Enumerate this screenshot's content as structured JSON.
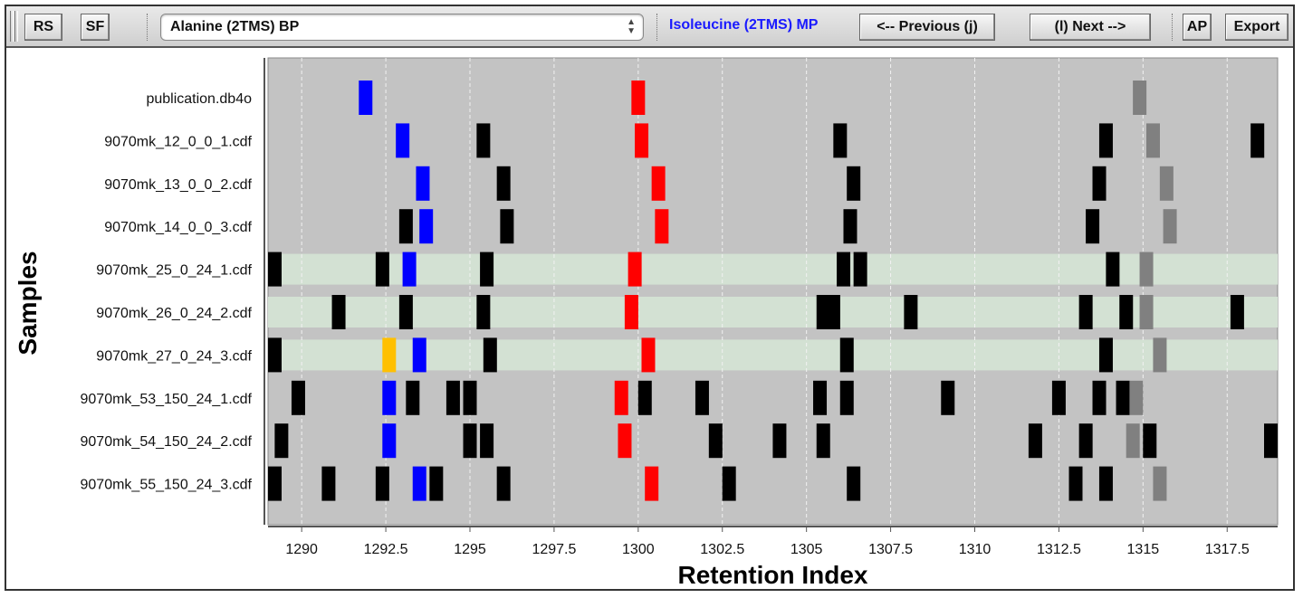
{
  "toolbar": {
    "rs_label": "RS",
    "sf_label": "SF",
    "selected_compound": "Alanine (2TMS) BP",
    "marker_label": "Isoleucine (2TMS) MP",
    "marker_color": "#1a1aff",
    "previous_label": "<-- Previous (j)",
    "next_label": "(l) Next -->",
    "ap_label": "AP",
    "export_label": "Export"
  },
  "colors": {
    "plot_background": "#c3c3c3",
    "highlight_row": "#d3e1d3",
    "peak_default": "#000000",
    "peak_selected": "#0000ff",
    "peak_marker": "#ff0000",
    "peak_gray": "#808080",
    "peak_highlight": "#ffc000"
  },
  "chart_data": {
    "type": "scatter",
    "title": "",
    "xlabel": "Retention Index",
    "ylabel": "Samples",
    "xlim": [
      1289,
      1319
    ],
    "xticks": [
      1290,
      1292.5,
      1295,
      1297.5,
      1300,
      1302.5,
      1305,
      1307.5,
      1310,
      1312.5,
      1315,
      1317.5
    ],
    "xtick_labels": [
      "1290",
      "1292.5",
      "1295",
      "1297.5",
      "1300",
      "1302.5",
      "1305",
      "1307.5",
      "1310",
      "1312.5",
      "1315",
      "1317.5"
    ],
    "grid": "vertical dashed",
    "highlighted_samples": [
      "9070mk_25_0_24_1.cdf",
      "9070mk_26_0_24_2.cdf",
      "9070mk_27_0_24_3.cdf"
    ],
    "samples": [
      {
        "name": "publication.db4o",
        "peaks": [
          {
            "x": 1291.9,
            "kind": "blue"
          },
          {
            "x": 1300.0,
            "kind": "red"
          },
          {
            "x": 1314.9,
            "kind": "gray"
          }
        ]
      },
      {
        "name": "9070mk_12_0_0_1.cdf",
        "peaks": [
          {
            "x": 1293.0,
            "kind": "blue"
          },
          {
            "x": 1295.4,
            "kind": "black"
          },
          {
            "x": 1300.1,
            "kind": "red"
          },
          {
            "x": 1306.0,
            "kind": "black"
          },
          {
            "x": 1313.9,
            "kind": "black"
          },
          {
            "x": 1315.3,
            "kind": "gray"
          },
          {
            "x": 1318.4,
            "kind": "black"
          }
        ]
      },
      {
        "name": "9070mk_13_0_0_2.cdf",
        "peaks": [
          {
            "x": 1293.6,
            "kind": "blue"
          },
          {
            "x": 1296.0,
            "kind": "black"
          },
          {
            "x": 1300.6,
            "kind": "red"
          },
          {
            "x": 1306.4,
            "kind": "black"
          },
          {
            "x": 1313.7,
            "kind": "black"
          },
          {
            "x": 1315.7,
            "kind": "gray"
          }
        ]
      },
      {
        "name": "9070mk_14_0_0_3.cdf",
        "peaks": [
          {
            "x": 1293.1,
            "kind": "black"
          },
          {
            "x": 1293.7,
            "kind": "blue"
          },
          {
            "x": 1296.1,
            "kind": "black"
          },
          {
            "x": 1300.7,
            "kind": "red"
          },
          {
            "x": 1306.3,
            "kind": "black"
          },
          {
            "x": 1313.5,
            "kind": "black"
          },
          {
            "x": 1315.8,
            "kind": "gray"
          }
        ]
      },
      {
        "name": "9070mk_25_0_24_1.cdf",
        "peaks": [
          {
            "x": 1289.0,
            "kind": "black"
          },
          {
            "x": 1292.4,
            "kind": "black"
          },
          {
            "x": 1293.2,
            "kind": "blue"
          },
          {
            "x": 1295.5,
            "kind": "black"
          },
          {
            "x": 1299.9,
            "kind": "red"
          },
          {
            "x": 1306.1,
            "kind": "black"
          },
          {
            "x": 1306.6,
            "kind": "black"
          },
          {
            "x": 1314.1,
            "kind": "black"
          },
          {
            "x": 1315.1,
            "kind": "gray"
          }
        ]
      },
      {
        "name": "9070mk_26_0_24_2.cdf",
        "peaks": [
          {
            "x": 1291.1,
            "kind": "black"
          },
          {
            "x": 1293.1,
            "kind": "black"
          },
          {
            "x": 1295.4,
            "kind": "black"
          },
          {
            "x": 1299.8,
            "kind": "red"
          },
          {
            "x": 1305.5,
            "kind": "black"
          },
          {
            "x": 1305.8,
            "kind": "black"
          },
          {
            "x": 1308.1,
            "kind": "black"
          },
          {
            "x": 1313.3,
            "kind": "black"
          },
          {
            "x": 1314.5,
            "kind": "black"
          },
          {
            "x": 1315.1,
            "kind": "gray"
          },
          {
            "x": 1317.8,
            "kind": "black"
          }
        ]
      },
      {
        "name": "9070mk_27_0_24_3.cdf",
        "peaks": [
          {
            "x": 1289.2,
            "kind": "black"
          },
          {
            "x": 1292.6,
            "kind": "yellow"
          },
          {
            "x": 1293.5,
            "kind": "blue"
          },
          {
            "x": 1295.6,
            "kind": "black"
          },
          {
            "x": 1300.3,
            "kind": "red"
          },
          {
            "x": 1306.2,
            "kind": "black"
          },
          {
            "x": 1313.9,
            "kind": "black"
          },
          {
            "x": 1315.5,
            "kind": "gray"
          }
        ]
      },
      {
        "name": "9070mk_53_150_24_1.cdf",
        "peaks": [
          {
            "x": 1289.9,
            "kind": "black"
          },
          {
            "x": 1292.6,
            "kind": "blue"
          },
          {
            "x": 1293.3,
            "kind": "black"
          },
          {
            "x": 1294.5,
            "kind": "black"
          },
          {
            "x": 1295.0,
            "kind": "black"
          },
          {
            "x": 1299.5,
            "kind": "red"
          },
          {
            "x": 1300.2,
            "kind": "black"
          },
          {
            "x": 1301.9,
            "kind": "black"
          },
          {
            "x": 1305.4,
            "kind": "black"
          },
          {
            "x": 1306.2,
            "kind": "black"
          },
          {
            "x": 1309.2,
            "kind": "black"
          },
          {
            "x": 1312.5,
            "kind": "black"
          },
          {
            "x": 1313.7,
            "kind": "black"
          },
          {
            "x": 1314.4,
            "kind": "black"
          },
          {
            "x": 1314.8,
            "kind": "gray"
          }
        ]
      },
      {
        "name": "9070mk_54_150_24_2.cdf",
        "peaks": [
          {
            "x": 1289.4,
            "kind": "black"
          },
          {
            "x": 1292.6,
            "kind": "blue"
          },
          {
            "x": 1295.0,
            "kind": "black"
          },
          {
            "x": 1295.5,
            "kind": "black"
          },
          {
            "x": 1299.6,
            "kind": "red"
          },
          {
            "x": 1302.3,
            "kind": "black"
          },
          {
            "x": 1304.2,
            "kind": "black"
          },
          {
            "x": 1305.5,
            "kind": "black"
          },
          {
            "x": 1311.8,
            "kind": "black"
          },
          {
            "x": 1313.3,
            "kind": "black"
          },
          {
            "x": 1314.7,
            "kind": "gray"
          },
          {
            "x": 1315.2,
            "kind": "black"
          },
          {
            "x": 1318.8,
            "kind": "black"
          }
        ]
      },
      {
        "name": "9070mk_55_150_24_3.cdf",
        "peaks": [
          {
            "x": 1289.1,
            "kind": "black"
          },
          {
            "x": 1290.8,
            "kind": "black"
          },
          {
            "x": 1292.4,
            "kind": "black"
          },
          {
            "x": 1293.5,
            "kind": "blue"
          },
          {
            "x": 1294.0,
            "kind": "black"
          },
          {
            "x": 1296.0,
            "kind": "black"
          },
          {
            "x": 1300.4,
            "kind": "red"
          },
          {
            "x": 1302.7,
            "kind": "black"
          },
          {
            "x": 1306.4,
            "kind": "black"
          },
          {
            "x": 1313.0,
            "kind": "black"
          },
          {
            "x": 1313.9,
            "kind": "black"
          },
          {
            "x": 1315.5,
            "kind": "gray"
          }
        ]
      }
    ]
  }
}
